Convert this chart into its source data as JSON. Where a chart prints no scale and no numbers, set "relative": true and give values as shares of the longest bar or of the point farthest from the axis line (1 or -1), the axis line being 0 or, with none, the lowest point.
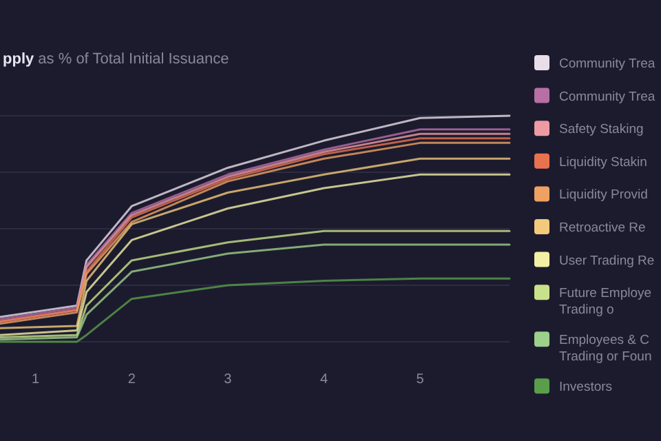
{
  "chart_data": {
    "type": "line",
    "title": "pply as % of Total Initial Issuance",
    "relative": true,
    "x": [
      0.63,
      1.43,
      1.53,
      2,
      3,
      4,
      5,
      5.93
    ],
    "xlim": [
      0.63,
      5.93
    ],
    "xticks": [
      1,
      2,
      3,
      4,
      5
    ],
    "grid": "y",
    "legend": "right",
    "marker": "none",
    "line_style": "solid",
    "series": [
      {
        "name": "Community Trea",
        "color": "#e9dde8",
        "values": [
          0.11,
          0.16,
          0.36,
          0.6,
          0.77,
          0.89,
          0.99,
          1
        ]
      },
      {
        "name": "Community Trea",
        "color": "#b86fa6",
        "values": [
          0.1,
          0.15,
          0.34,
          0.57,
          0.74,
          0.85,
          0.94,
          0.94
        ]
      },
      {
        "name": "Safety Staking",
        "color": "#ee9aa2",
        "values": [
          0.09,
          0.14,
          0.33,
          0.56,
          0.73,
          0.84,
          0.92,
          0.92
        ]
      },
      {
        "name": "Liquidity Stakin",
        "color": "#e8724f",
        "values": [
          0.09,
          0.14,
          0.31,
          0.55,
          0.72,
          0.83,
          0.9,
          0.9
        ]
      },
      {
        "name": "Liquidity Provid",
        "color": "#eea162",
        "values": [
          0.08,
          0.13,
          0.3,
          0.53,
          0.71,
          0.81,
          0.88,
          0.88
        ]
      },
      {
        "name": "Retroactive Re",
        "color": "#f3c97b",
        "values": [
          0.06,
          0.07,
          0.27,
          0.52,
          0.66,
          0.74,
          0.81,
          0.81
        ]
      },
      {
        "name": "User Trading Re",
        "color": "#f3f0a5",
        "values": [
          0.03,
          0.05,
          0.22,
          0.45,
          0.59,
          0.68,
          0.74,
          0.74
        ]
      },
      {
        "name": "Future Employe\nTrading o",
        "color": "#c9e28a",
        "values": [
          0.02,
          0.03,
          0.16,
          0.36,
          0.44,
          0.49,
          0.49,
          0.49
        ]
      },
      {
        "name": "Employees & C\nTrading or Foun",
        "color": "#9dd08a",
        "values": [
          0.01,
          0.02,
          0.12,
          0.31,
          0.39,
          0.43,
          0.43,
          0.43
        ]
      },
      {
        "name": "Investors",
        "color": "#5a9e4a",
        "values": [
          0,
          0,
          0.03,
          0.19,
          0.25,
          0.27,
          0.28,
          0.28
        ]
      }
    ]
  }
}
